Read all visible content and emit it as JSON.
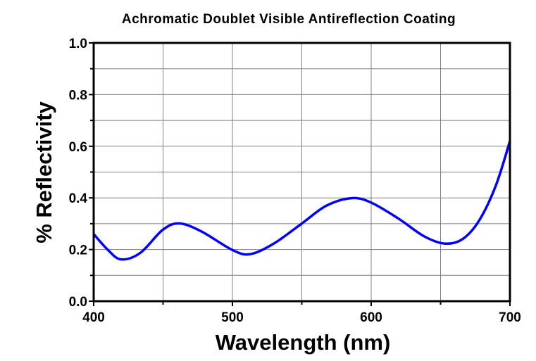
{
  "chart_data": {
    "type": "line",
    "title": "Achromatic Doublet Visible Antireflection Coating",
    "xlabel": "Wavelength (nm)",
    "ylabel": "% Reflectivity",
    "xlim": [
      400,
      700
    ],
    "ylim": [
      0.0,
      1.0
    ],
    "xticks": [
      "400",
      "500",
      "600",
      "700"
    ],
    "xtick_values": [
      400,
      500,
      600,
      700
    ],
    "yticks": [
      "0.0",
      "0.2",
      "0.4",
      "0.6",
      "0.8",
      "1.0"
    ],
    "ytick_values": [
      0.0,
      0.2,
      0.4,
      0.6,
      0.8,
      1.0
    ],
    "grid": true,
    "grid_x_step": 50,
    "grid_y_step": 0.1,
    "series": [
      {
        "name": "Reflectivity",
        "color": "#0000ff",
        "x": [
          400,
          410,
          419.6,
          433.6,
          449.7,
          461.7,
          477.7,
          499.7,
          512.7,
          529.8,
          549.8,
          567.8,
          585.9,
          599.9,
          619.9,
          637.9,
          653,
          666,
          678,
          690,
          700
        ],
        "y": [
          0.26,
          0.2,
          0.162,
          0.187,
          0.276,
          0.301,
          0.27,
          0.199,
          0.182,
          0.223,
          0.3,
          0.37,
          0.399,
          0.382,
          0.319,
          0.252,
          0.223,
          0.241,
          0.314,
          0.45,
          0.62
        ]
      }
    ]
  }
}
